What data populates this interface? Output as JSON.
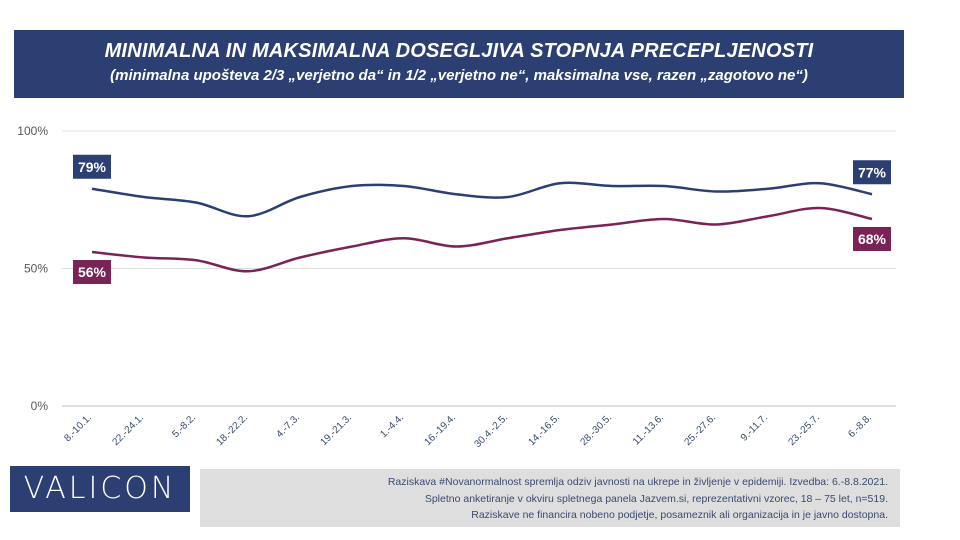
{
  "header": {
    "title": "MINIMALNA IN MAKSIMALNA DOSEGLJIVA STOPNJA PRECEPLJENOSTI",
    "subtitle": "(minimalna upošteva 2/3 „verjetno da“ in 1/2 „verjetno ne“, maksimalna vse,  razen „zagotovo ne“)"
  },
  "logo": "VALICON",
  "note": {
    "line1": "Raziskava #Novanormalnost spremlja odziv javnosti na ukrepe in življenje v epidemiji. Izvedba: 6.-8.8.2021.",
    "line2": "Spletno anketiranje v okviru spletnega panela Jazvem.si, reprezentativni vzorec, 18 – 75 let, n=519.",
    "line3": "Raziskave ne financira nobeno podjetje, posameznik ali organizacija in je javno dostopna."
  },
  "chart_data": {
    "type": "line",
    "categories": [
      "8.-10.1.",
      "22.-24.1.",
      "5.-8.2.",
      "18.-22.2.",
      "4.-7.3.",
      "19.-21.3.",
      "1.-4.4.",
      "16.-19.4.",
      "30.4.-2.5.",
      "14.-16.5.",
      "28.-30.5.",
      "11.-13.6.",
      "25.-27.6.",
      "9.-11.7.",
      "23.-25.7.",
      "6.-8.8."
    ],
    "ylim": [
      0,
      100
    ],
    "yticks": [
      0,
      50,
      100
    ],
    "ytick_labels": [
      "0%",
      "50%",
      "100%"
    ],
    "grid": "horizontal",
    "series": [
      {
        "key": "max",
        "color": "#2b3f73",
        "values": [
          79,
          76,
          74,
          69,
          76,
          80,
          80,
          77,
          76,
          81,
          80,
          80,
          78,
          79,
          81,
          77
        ],
        "labels": [
          {
            "index": 0,
            "text": "79%"
          },
          {
            "index": 15,
            "text": "77%"
          }
        ]
      },
      {
        "key": "min",
        "color": "#7a2356",
        "values": [
          56,
          54,
          53,
          49,
          54,
          58,
          61,
          58,
          61,
          64,
          66,
          68,
          66,
          69,
          72,
          68
        ],
        "labels": [
          {
            "index": 0,
            "text": "56%"
          },
          {
            "index": 15,
            "text": "68%"
          }
        ]
      }
    ]
  }
}
